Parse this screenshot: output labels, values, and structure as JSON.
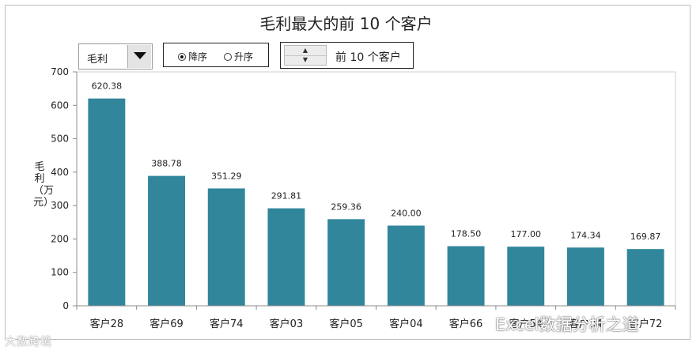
{
  "controls": {
    "metric_selected": "毛利",
    "sort_desc_label": "降序",
    "sort_asc_label": "升序",
    "sort_selected": "desc",
    "topn_label": "前 10 个客户"
  },
  "watermarks": {
    "left": "大数跨境",
    "right": "Excel数据分析之道"
  },
  "colors": {
    "bar": "#31869b",
    "axis": "#8c8c8c"
  },
  "chart_data": {
    "type": "bar",
    "title": "毛利最大的前 10 个客户",
    "xlabel": "",
    "ylabel": "毛利（万元）",
    "ylim": [
      0,
      700
    ],
    "yticks": [
      "0",
      "100",
      "200",
      "300",
      "400",
      "500",
      "600",
      "700"
    ],
    "categories": [
      "客户28",
      "客户69",
      "客户74",
      "客户03",
      "客户05",
      "客户04",
      "客户66",
      "客户54",
      "客户34",
      "客户72"
    ],
    "values": [
      620.38,
      388.78,
      351.29,
      291.81,
      259.36,
      240.0,
      178.5,
      177.0,
      174.34,
      169.87
    ],
    "data_labels": [
      "620.38",
      "388.78",
      "351.29",
      "291.81",
      "259.36",
      "240.00",
      "178.50",
      "177.00",
      "174.34",
      "169.87"
    ],
    "grid": false,
    "legend": "none"
  }
}
